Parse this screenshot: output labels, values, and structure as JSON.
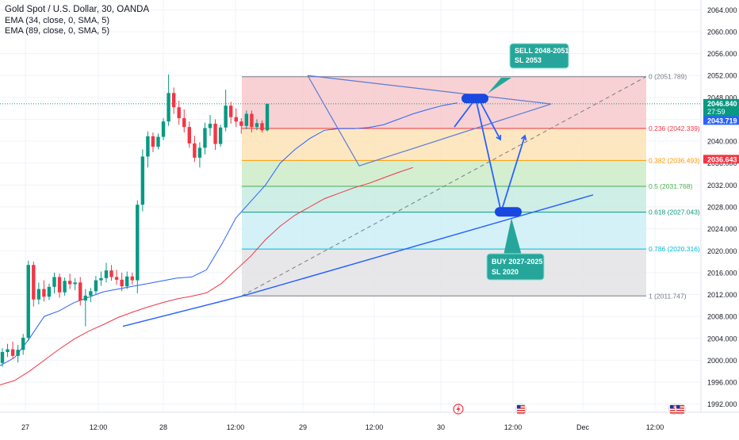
{
  "header": {
    "title": "Gold Spot / U.S. Dollar, 30, OANDA",
    "indicators": [
      "EMA (34, close, 0, SMA, 5)",
      "EMA (89, close, 0, SMA, 5)"
    ]
  },
  "chart_data": {
    "type": "candlestick",
    "symbol": "Gold Spot / U.S. Dollar",
    "timeframe": "30",
    "ylim": [
      1990.5,
      2065.5
    ],
    "y_ticks": [
      "2064.000",
      "2060.000",
      "2056.000",
      "2052.000",
      "2048.000",
      "2044.000",
      "2040.000",
      "2036.000",
      "2032.000",
      "2028.000",
      "2024.000",
      "2020.000",
      "2016.000",
      "2012.000",
      "2008.000",
      "2004.000",
      "2000.000",
      "1996.000",
      "1992.000"
    ],
    "x_ticks": [
      "27",
      "12:00",
      "28",
      "12:00",
      "29",
      "12:00",
      "30",
      "12:00",
      "Dec",
      "12:00"
    ],
    "price_badges": [
      {
        "value": "2046.840",
        "sub": [
          "27:59"
        ],
        "color": "#089981"
      },
      {
        "value": "2043.719",
        "sub": [],
        "color": "#2962ff"
      },
      {
        "value": "2036.643",
        "sub": [],
        "color": "#f23645"
      }
    ],
    "fib_levels": [
      {
        "ratio": "0",
        "price": 2051.789,
        "label": "0 (2051.789)",
        "color": "#787b86"
      },
      {
        "ratio": "0.236",
        "price": 2042.339,
        "label": "0.236 (2042.339)",
        "color": "#f23645"
      },
      {
        "ratio": "0.382",
        "price": 2036.493,
        "label": "0.382 (2036.493)",
        "color": "#ff9800"
      },
      {
        "ratio": "0.5",
        "price": 2031.768,
        "label": "0.5 (2031.768)",
        "color": "#4caf50"
      },
      {
        "ratio": "0.618",
        "price": 2027.043,
        "label": "0.618 (2027.043)",
        "color": "#089981"
      },
      {
        "ratio": "0.786",
        "price": 2020.316,
        "label": "0.786 (2020.316)",
        "color": "#00bcd4"
      },
      {
        "ratio": "1",
        "price": 2011.747,
        "label": "1 (2011.747)",
        "color": "#787b86"
      }
    ],
    "annotations": [
      {
        "kind": "sell",
        "lines": [
          "SELL 2048-2051",
          "SL 2053"
        ]
      },
      {
        "kind": "buy",
        "lines": [
          "BUY 2027-2025",
          "SL 2020"
        ]
      }
    ],
    "series": [
      {
        "name": "EMA 34",
        "color": "#2962ff",
        "values": [
          1999.0,
          2000.5,
          2004.0,
          2008.0,
          2009.0,
          2010.5,
          2011.5,
          2012.5,
          2013.0,
          2013.5,
          2014.0,
          2014.5,
          2015.0,
          2015.2,
          2016.5,
          2021.0,
          2026.0,
          2029.0,
          2032.0,
          2036.0,
          2038.5,
          2040.5,
          2042.0,
          2042.3,
          2042.3,
          2042.5,
          2043.0,
          2044.0,
          2045.0,
          2045.8,
          2046.5,
          2047.0
        ]
      },
      {
        "name": "EMA 89",
        "color": "#f23645",
        "values": [
          1995.5,
          1996.3,
          1998.0,
          2000.0,
          2002.0,
          2003.8,
          2005.3,
          2006.5,
          2007.8,
          2008.8,
          2009.7,
          2010.5,
          2011.2,
          2011.7,
          2012.3,
          2014.0,
          2016.5,
          2019.0,
          2022.0,
          2024.5,
          2026.5,
          2028.0,
          2029.5,
          2030.5,
          2031.5,
          2032.3,
          2033.3,
          2034.3,
          2035.2
        ]
      }
    ],
    "candles": [
      {
        "o": 1999.5,
        "h": 2002.2,
        "l": 1998.8,
        "c": 2001.5
      },
      {
        "o": 2001.5,
        "h": 2003.0,
        "l": 2000.6,
        "c": 2002.0
      },
      {
        "o": 2002.0,
        "h": 2003.4,
        "l": 2000.2,
        "c": 2000.8
      },
      {
        "o": 2000.8,
        "h": 2002.8,
        "l": 1999.6,
        "c": 2001.9
      },
      {
        "o": 2001.9,
        "h": 2004.8,
        "l": 2001.0,
        "c": 2004.1
      },
      {
        "o": 2004.1,
        "h": 2018.2,
        "l": 2003.5,
        "c": 2017.4
      },
      {
        "o": 2017.4,
        "h": 2018.0,
        "l": 2009.8,
        "c": 2011.1
      },
      {
        "o": 2011.1,
        "h": 2014.2,
        "l": 2010.2,
        "c": 2013.0
      },
      {
        "o": 2013.0,
        "h": 2014.6,
        "l": 2010.7,
        "c": 2011.6
      },
      {
        "o": 2011.6,
        "h": 2014.0,
        "l": 2011.0,
        "c": 2013.4
      },
      {
        "o": 2013.4,
        "h": 2016.0,
        "l": 2012.2,
        "c": 2015.2
      },
      {
        "o": 2015.2,
        "h": 2015.8,
        "l": 2011.4,
        "c": 2012.4
      },
      {
        "o": 2012.4,
        "h": 2015.1,
        "l": 2011.8,
        "c": 2014.5
      },
      {
        "o": 2014.5,
        "h": 2015.8,
        "l": 2013.0,
        "c": 2013.9
      },
      {
        "o": 2013.9,
        "h": 2015.0,
        "l": 2012.8,
        "c": 2014.2
      },
      {
        "o": 2014.2,
        "h": 2015.2,
        "l": 2010.0,
        "c": 2010.9
      },
      {
        "o": 2010.9,
        "h": 2013.0,
        "l": 2006.2,
        "c": 2011.8
      },
      {
        "o": 2011.8,
        "h": 2013.2,
        "l": 2010.6,
        "c": 2012.6
      },
      {
        "o": 2012.6,
        "h": 2015.4,
        "l": 2012.0,
        "c": 2014.6
      },
      {
        "o": 2014.6,
        "h": 2016.2,
        "l": 2013.6,
        "c": 2015.0
      },
      {
        "o": 2015.0,
        "h": 2017.8,
        "l": 2014.2,
        "c": 2016.4
      },
      {
        "o": 2016.4,
        "h": 2017.4,
        "l": 2014.5,
        "c": 2015.2
      },
      {
        "o": 2015.2,
        "h": 2016.5,
        "l": 2013.8,
        "c": 2014.7
      },
      {
        "o": 2014.7,
        "h": 2016.0,
        "l": 2012.6,
        "c": 2013.5
      },
      {
        "o": 2013.5,
        "h": 2016.2,
        "l": 2013.0,
        "c": 2015.3
      },
      {
        "o": 2015.3,
        "h": 2016.0,
        "l": 2013.8,
        "c": 2014.6
      },
      {
        "o": 2014.6,
        "h": 2029.2,
        "l": 2012.2,
        "c": 2028.4
      },
      {
        "o": 2028.4,
        "h": 2038.5,
        "l": 2027.2,
        "c": 2037.2
      },
      {
        "o": 2037.2,
        "h": 2041.8,
        "l": 2035.2,
        "c": 2040.9
      },
      {
        "o": 2040.9,
        "h": 2041.6,
        "l": 2038.0,
        "c": 2039.0
      },
      {
        "o": 2039.0,
        "h": 2041.4,
        "l": 2038.5,
        "c": 2040.8
      },
      {
        "o": 2040.8,
        "h": 2044.2,
        "l": 2040.2,
        "c": 2043.6
      },
      {
        "o": 2043.6,
        "h": 2052.2,
        "l": 2042.8,
        "c": 2048.8
      },
      {
        "o": 2048.8,
        "h": 2049.8,
        "l": 2045.0,
        "c": 2046.2
      },
      {
        "o": 2046.2,
        "h": 2047.4,
        "l": 2043.0,
        "c": 2044.2
      },
      {
        "o": 2044.2,
        "h": 2045.8,
        "l": 2041.6,
        "c": 2042.6
      },
      {
        "o": 2042.6,
        "h": 2043.6,
        "l": 2038.8,
        "c": 2039.6
      },
      {
        "o": 2039.6,
        "h": 2041.0,
        "l": 2036.2,
        "c": 2037.0
      },
      {
        "o": 2037.0,
        "h": 2039.8,
        "l": 2035.2,
        "c": 2038.8
      },
      {
        "o": 2038.8,
        "h": 2043.4,
        "l": 2037.6,
        "c": 2042.4
      },
      {
        "o": 2042.4,
        "h": 2044.8,
        "l": 2041.0,
        "c": 2043.2
      },
      {
        "o": 2043.2,
        "h": 2044.0,
        "l": 2038.4,
        "c": 2039.5
      },
      {
        "o": 2039.5,
        "h": 2043.0,
        "l": 2039.0,
        "c": 2042.5
      },
      {
        "o": 2042.5,
        "h": 2049.4,
        "l": 2041.8,
        "c": 2046.5
      },
      {
        "o": 2046.5,
        "h": 2047.2,
        "l": 2043.2,
        "c": 2044.4
      },
      {
        "o": 2044.4,
        "h": 2046.0,
        "l": 2042.6,
        "c": 2043.6
      },
      {
        "o": 2043.6,
        "h": 2044.2,
        "l": 2041.4,
        "c": 2042.8
      },
      {
        "o": 2042.8,
        "h": 2045.6,
        "l": 2042.2,
        "c": 2045.0
      },
      {
        "o": 2045.0,
        "h": 2045.6,
        "l": 2041.6,
        "c": 2042.6
      },
      {
        "o": 2042.6,
        "h": 2044.0,
        "l": 2042.0,
        "c": 2043.3
      },
      {
        "o": 2043.3,
        "h": 2043.8,
        "l": 2041.6,
        "c": 2042.0
      },
      {
        "o": 2042.0,
        "h": 2046.9,
        "l": 2041.8,
        "c": 2046.8
      }
    ]
  }
}
